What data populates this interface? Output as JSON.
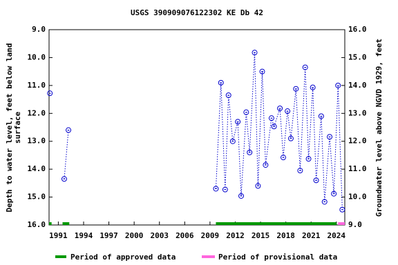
{
  "chart_data": {
    "type": "line",
    "title": "USGS 390909076122302 KE Db  42",
    "ylabel": [
      "Depth to water level, feet below land",
      "surface"
    ],
    "y2label": "Groundwater level above NGVD 1929, feet",
    "xlim": [
      1989.9,
      2025.0
    ],
    "xticks": [
      1991,
      1994,
      1997,
      2000,
      2003,
      2006,
      2009,
      2012,
      2015,
      2018,
      2021,
      2024
    ],
    "ylim": [
      16.0,
      9.0
    ],
    "yticks": [
      {
        "value": 9,
        "label": "9.0"
      },
      {
        "value": 10,
        "label": "10.0"
      },
      {
        "value": 11,
        "label": "11.0"
      },
      {
        "value": 12,
        "label": "12.0"
      },
      {
        "value": 13,
        "label": "13.0"
      },
      {
        "value": 14,
        "label": "14.0"
      },
      {
        "value": 15,
        "label": "15.0"
      },
      {
        "value": 16,
        "label": "16.0"
      }
    ],
    "y2lim": [
      9.0,
      16.0
    ],
    "y2ticks": [
      {
        "value": 9,
        "label": "9.0"
      },
      {
        "value": 10,
        "label": "10.0"
      },
      {
        "value": 11,
        "label": "11.0"
      },
      {
        "value": 12,
        "label": "12.0"
      },
      {
        "value": 13,
        "label": "13.0"
      },
      {
        "value": 14,
        "label": "14.0"
      },
      {
        "value": 15,
        "label": "15.0"
      },
      {
        "value": 16,
        "label": "16.0"
      }
    ],
    "y_inverted": true,
    "grid": false,
    "series": [
      {
        "color": "#0000cc",
        "x": [
          1990.0,
          null,
          1991.7,
          1992.2,
          null,
          2009.7,
          2010.3,
          2010.8,
          2011.2,
          2011.7,
          2012.3,
          2012.7,
          2013.3,
          2013.7,
          2014.3,
          2014.7,
          2015.2,
          2015.6,
          2016.3,
          2016.6,
          2017.3,
          2017.7,
          2018.2,
          2018.6,
          2019.2,
          2019.7,
          2020.3,
          2020.7,
          2021.2,
          2021.6,
          2022.2,
          2022.6,
          2023.2,
          2023.7,
          2024.2,
          2024.7
        ],
        "values": [
          11.28,
          null,
          14.35,
          12.6,
          null,
          14.7,
          10.9,
          14.73,
          11.35,
          13.0,
          12.3,
          14.96,
          11.96,
          13.4,
          9.82,
          14.6,
          10.5,
          13.85,
          12.17,
          12.47,
          11.82,
          13.58,
          11.92,
          12.9,
          11.12,
          14.05,
          10.35,
          13.63,
          11.07,
          14.4,
          12.1,
          15.17,
          12.84,
          14.88,
          11.0,
          15.45
        ]
      }
    ],
    "periods": [
      {
        "name": "Period of approved data",
        "color": "#009900",
        "ranges": [
          [
            1989.9,
            1990.2
          ],
          [
            1991.5,
            1992.3
          ],
          [
            2009.7,
            2024.0
          ]
        ]
      },
      {
        "name": "Period of provisional data",
        "color": "#ff66dd",
        "ranges": [
          [
            2024.2,
            2025.0
          ]
        ]
      }
    ]
  }
}
